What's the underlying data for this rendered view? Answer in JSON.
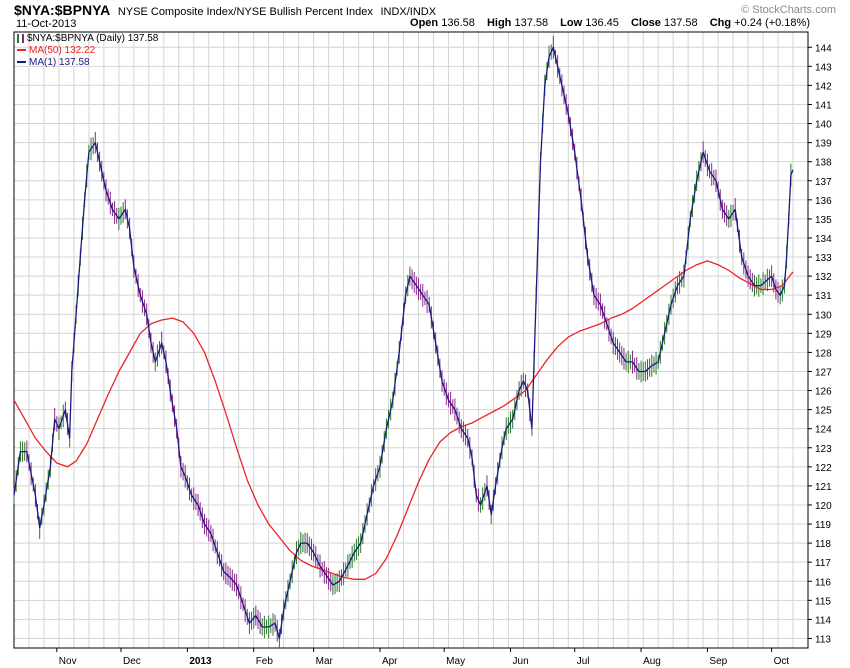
{
  "header": {
    "symbol": "$NYA:$BPNYA",
    "description": "NYSE Composite Index/NYSE Bullish Percent Index",
    "exchange": "INDX/INDX",
    "date": "11-Oct-2013",
    "brand": "© StockCharts.com",
    "open_label": "Open",
    "open_value": "136.58",
    "high_label": "High",
    "high_value": "137.58",
    "low_label": "Low",
    "low_value": "136.45",
    "close_label": "Close",
    "close_value": "137.58",
    "chg_label": "Chg",
    "chg_value": "+0.24 (+0.18%)"
  },
  "legend": {
    "price": "$NYA:$BPNYA (Daily) 137.58",
    "ma50": "MA(50) 132.22",
    "ma1": "MA(1) 137.58"
  },
  "colors": {
    "price_line": "#1a1a80",
    "ma50_line": "#e8262a",
    "up_bar": "#2a7a2a",
    "down_bar": "#8a2a8a",
    "grid": "#d4d4d4",
    "axis": "#000000"
  },
  "chart_data": {
    "type": "line",
    "y_axis_side": "right",
    "ylim": [
      112.5,
      144.8
    ],
    "yticks": [
      113,
      114,
      115,
      116,
      117,
      118,
      119,
      120,
      121,
      122,
      123,
      124,
      125,
      126,
      127,
      128,
      129,
      130,
      131,
      132,
      133,
      134,
      135,
      136,
      137,
      138,
      139,
      140,
      141,
      142,
      143,
      144
    ],
    "x_labels": [
      {
        "label": "Nov",
        "date": "2012-11-01"
      },
      {
        "label": "Dec",
        "date": "2012-12-01"
      },
      {
        "label": "2013",
        "date": "2013-01-01",
        "bold": true
      },
      {
        "label": "Feb",
        "date": "2013-02-01"
      },
      {
        "label": "Mar",
        "date": "2013-03-01"
      },
      {
        "label": "Apr",
        "date": "2013-04-01"
      },
      {
        "label": "May",
        "date": "2013-05-01"
      },
      {
        "label": "Jun",
        "date": "2013-06-01"
      },
      {
        "label": "Jul",
        "date": "2013-07-01"
      },
      {
        "label": "Aug",
        "date": "2013-08-01"
      },
      {
        "label": "Sep",
        "date": "2013-09-01"
      },
      {
        "label": "Oct",
        "date": "2013-10-01"
      }
    ],
    "x_range": [
      "2012-10-12",
      "2013-10-18"
    ],
    "series": [
      {
        "name": "MA(1)",
        "values": [
          [
            "2012-10-12",
            120.5
          ],
          [
            "2012-10-15",
            122.8
          ],
          [
            "2012-10-18",
            122.8
          ],
          [
            "2012-10-22",
            120.5
          ],
          [
            "2012-10-24",
            118.8
          ],
          [
            "2012-10-26",
            120.0
          ],
          [
            "2012-10-29",
            122.0
          ],
          [
            "2012-10-31",
            124.5
          ],
          [
            "2012-11-02",
            124.0
          ],
          [
            "2012-11-05",
            125.0
          ],
          [
            "2012-11-07",
            123.5
          ],
          [
            "2012-11-08",
            127.0
          ],
          [
            "2012-11-10",
            130.0
          ],
          [
            "2012-11-12",
            133.0
          ],
          [
            "2012-11-14",
            136.0
          ],
          [
            "2012-11-16",
            138.5
          ],
          [
            "2012-11-19",
            139.0
          ],
          [
            "2012-11-21",
            138.0
          ],
          [
            "2012-11-24",
            136.5
          ],
          [
            "2012-11-27",
            135.5
          ],
          [
            "2012-11-30",
            135.0
          ],
          [
            "2012-12-03",
            135.5
          ],
          [
            "2012-12-05",
            134.5
          ],
          [
            "2012-12-07",
            132.5
          ],
          [
            "2012-12-10",
            131.0
          ],
          [
            "2012-12-13",
            130.0
          ],
          [
            "2012-12-15",
            128.5
          ],
          [
            "2012-12-17",
            127.5
          ],
          [
            "2012-12-20",
            128.5
          ],
          [
            "2012-12-22",
            127.5
          ],
          [
            "2012-12-24",
            126.0
          ],
          [
            "2012-12-27",
            124.0
          ],
          [
            "2012-12-29",
            122.0
          ],
          [
            "2012-12-31",
            121.5
          ],
          [
            "2013-01-03",
            120.5
          ],
          [
            "2013-01-06",
            120.0
          ],
          [
            "2013-01-09",
            119.0
          ],
          [
            "2013-01-12",
            118.5
          ],
          [
            "2013-01-15",
            117.5
          ],
          [
            "2013-01-18",
            116.5
          ],
          [
            "2013-01-21",
            116.2
          ],
          [
            "2013-01-24",
            115.8
          ],
          [
            "2013-01-27",
            114.8
          ],
          [
            "2013-01-30",
            113.8
          ],
          [
            "2013-02-02",
            114.2
          ],
          [
            "2013-02-05",
            113.6
          ],
          [
            "2013-02-08",
            113.6
          ],
          [
            "2013-02-11",
            113.8
          ],
          [
            "2013-02-13",
            113.0
          ],
          [
            "2013-02-15",
            114.5
          ],
          [
            "2013-02-17",
            115.5
          ],
          [
            "2013-02-19",
            116.5
          ],
          [
            "2013-02-21",
            117.5
          ],
          [
            "2013-02-23",
            118.0
          ],
          [
            "2013-02-26",
            118.0
          ],
          [
            "2013-03-01",
            117.5
          ],
          [
            "2013-03-04",
            116.8
          ],
          [
            "2013-03-07",
            116.3
          ],
          [
            "2013-03-10",
            115.8
          ],
          [
            "2013-03-13",
            116.0
          ],
          [
            "2013-03-16",
            116.6
          ],
          [
            "2013-03-20",
            117.5
          ],
          [
            "2013-03-23",
            118.0
          ],
          [
            "2013-03-26",
            119.5
          ],
          [
            "2013-03-29",
            121.0
          ],
          [
            "2013-04-01",
            122.0
          ],
          [
            "2013-04-04",
            124.0
          ],
          [
            "2013-04-07",
            125.5
          ],
          [
            "2013-04-10",
            128.0
          ],
          [
            "2013-04-13",
            131.0
          ],
          [
            "2013-04-15",
            132.0
          ],
          [
            "2013-04-18",
            131.5
          ],
          [
            "2013-04-21",
            131.0
          ],
          [
            "2013-04-24",
            130.5
          ],
          [
            "2013-04-27",
            128.5
          ],
          [
            "2013-04-30",
            126.5
          ],
          [
            "2013-05-03",
            125.5
          ],
          [
            "2013-05-06",
            125.0
          ],
          [
            "2013-05-09",
            124.0
          ],
          [
            "2013-05-12",
            123.5
          ],
          [
            "2013-05-14",
            122.5
          ],
          [
            "2013-05-16",
            120.5
          ],
          [
            "2013-05-18",
            120.0
          ],
          [
            "2013-05-21",
            121.0
          ],
          [
            "2013-05-23",
            119.5
          ],
          [
            "2013-05-25",
            121.0
          ],
          [
            "2013-05-28",
            123.0
          ],
          [
            "2013-05-30",
            124.0
          ],
          [
            "2013-06-02",
            124.5
          ],
          [
            "2013-06-05",
            126.0
          ],
          [
            "2013-06-07",
            126.5
          ],
          [
            "2013-06-09",
            126.0
          ],
          [
            "2013-06-11",
            124.0
          ],
          [
            "2013-06-13",
            131.0
          ],
          [
            "2013-06-15",
            138.0
          ],
          [
            "2013-06-17",
            142.0
          ],
          [
            "2013-06-19",
            143.5
          ],
          [
            "2013-06-21",
            144.0
          ],
          [
            "2013-06-23",
            143.0
          ],
          [
            "2013-06-25",
            142.0
          ],
          [
            "2013-06-28",
            140.5
          ],
          [
            "2013-07-01",
            138.5
          ],
          [
            "2013-07-04",
            136.0
          ],
          [
            "2013-07-07",
            133.0
          ],
          [
            "2013-07-10",
            131.0
          ],
          [
            "2013-07-13",
            130.5
          ],
          [
            "2013-07-16",
            129.5
          ],
          [
            "2013-07-19",
            128.5
          ],
          [
            "2013-07-22",
            128.0
          ],
          [
            "2013-07-25",
            127.5
          ],
          [
            "2013-07-28",
            127.5
          ],
          [
            "2013-07-31",
            127.0
          ],
          [
            "2013-08-03",
            127.0
          ],
          [
            "2013-08-06",
            127.3
          ],
          [
            "2013-08-09",
            127.5
          ],
          [
            "2013-08-12",
            129.0
          ],
          [
            "2013-08-15",
            130.5
          ],
          [
            "2013-08-18",
            131.5
          ],
          [
            "2013-08-21",
            132.0
          ],
          [
            "2013-08-24",
            135.0
          ],
          [
            "2013-08-27",
            137.0
          ],
          [
            "2013-08-30",
            138.5
          ],
          [
            "2013-09-02",
            137.5
          ],
          [
            "2013-09-05",
            137.0
          ],
          [
            "2013-09-08",
            135.5
          ],
          [
            "2013-09-11",
            135.0
          ],
          [
            "2013-09-14",
            135.5
          ],
          [
            "2013-09-17",
            133.0
          ],
          [
            "2013-09-20",
            132.0
          ],
          [
            "2013-09-23",
            131.5
          ],
          [
            "2013-09-26",
            131.5
          ],
          [
            "2013-09-29",
            131.8
          ],
          [
            "2013-10-01",
            132.0
          ],
          [
            "2013-10-03",
            131.3
          ],
          [
            "2013-10-05",
            131.0
          ],
          [
            "2013-10-07",
            131.5
          ],
          [
            "2013-10-08",
            133.0
          ],
          [
            "2013-10-09",
            135.0
          ],
          [
            "2013-10-10",
            137.3
          ],
          [
            "2013-10-11",
            137.58
          ]
        ]
      },
      {
        "name": "MA(50)",
        "values": [
          [
            "2012-10-12",
            125.5
          ],
          [
            "2012-10-17",
            124.5
          ],
          [
            "2012-10-22",
            123.5
          ],
          [
            "2012-10-27",
            122.8
          ],
          [
            "2012-11-01",
            122.2
          ],
          [
            "2012-11-06",
            122.0
          ],
          [
            "2012-11-10",
            122.3
          ],
          [
            "2012-11-15",
            123.2
          ],
          [
            "2012-11-20",
            124.5
          ],
          [
            "2012-11-25",
            125.8
          ],
          [
            "2012-11-30",
            127.0
          ],
          [
            "2012-12-05",
            128.0
          ],
          [
            "2012-12-10",
            129.0
          ],
          [
            "2012-12-15",
            129.5
          ],
          [
            "2012-12-20",
            129.7
          ],
          [
            "2012-12-25",
            129.8
          ],
          [
            "2012-12-30",
            129.6
          ],
          [
            "2013-01-04",
            129.0
          ],
          [
            "2013-01-09",
            128.0
          ],
          [
            "2013-01-14",
            126.5
          ],
          [
            "2013-01-19",
            124.8
          ],
          [
            "2013-01-24",
            123.0
          ],
          [
            "2013-01-29",
            121.3
          ],
          [
            "2013-02-03",
            120.0
          ],
          [
            "2013-02-08",
            119.0
          ],
          [
            "2013-02-13",
            118.3
          ],
          [
            "2013-02-18",
            117.6
          ],
          [
            "2013-02-23",
            117.1
          ],
          [
            "2013-02-28",
            116.8
          ],
          [
            "2013-03-05",
            116.6
          ],
          [
            "2013-03-10",
            116.4
          ],
          [
            "2013-03-15",
            116.2
          ],
          [
            "2013-03-20",
            116.1
          ],
          [
            "2013-03-25",
            116.1
          ],
          [
            "2013-03-30",
            116.4
          ],
          [
            "2013-04-04",
            117.2
          ],
          [
            "2013-04-09",
            118.4
          ],
          [
            "2013-04-14",
            119.8
          ],
          [
            "2013-04-19",
            121.2
          ],
          [
            "2013-04-24",
            122.4
          ],
          [
            "2013-04-29",
            123.3
          ],
          [
            "2013-05-04",
            123.8
          ],
          [
            "2013-05-09",
            124.1
          ],
          [
            "2013-05-14",
            124.3
          ],
          [
            "2013-05-19",
            124.6
          ],
          [
            "2013-05-24",
            124.9
          ],
          [
            "2013-05-29",
            125.2
          ],
          [
            "2013-06-03",
            125.6
          ],
          [
            "2013-06-08",
            126.0
          ],
          [
            "2013-06-13",
            126.8
          ],
          [
            "2013-06-18",
            127.6
          ],
          [
            "2013-06-23",
            128.3
          ],
          [
            "2013-06-28",
            128.8
          ],
          [
            "2013-07-03",
            129.1
          ],
          [
            "2013-07-08",
            129.3
          ],
          [
            "2013-07-13",
            129.5
          ],
          [
            "2013-07-18",
            129.8
          ],
          [
            "2013-07-23",
            130.0
          ],
          [
            "2013-07-28",
            130.3
          ],
          [
            "2013-08-02",
            130.7
          ],
          [
            "2013-08-07",
            131.1
          ],
          [
            "2013-08-12",
            131.5
          ],
          [
            "2013-08-17",
            131.9
          ],
          [
            "2013-08-22",
            132.3
          ],
          [
            "2013-08-27",
            132.6
          ],
          [
            "2013-09-01",
            132.8
          ],
          [
            "2013-09-06",
            132.6
          ],
          [
            "2013-09-11",
            132.3
          ],
          [
            "2013-09-16",
            131.9
          ],
          [
            "2013-09-21",
            131.6
          ],
          [
            "2013-09-26",
            131.3
          ],
          [
            "2013-10-01",
            131.3
          ],
          [
            "2013-10-06",
            131.5
          ],
          [
            "2013-10-11",
            132.22
          ]
        ]
      }
    ]
  }
}
